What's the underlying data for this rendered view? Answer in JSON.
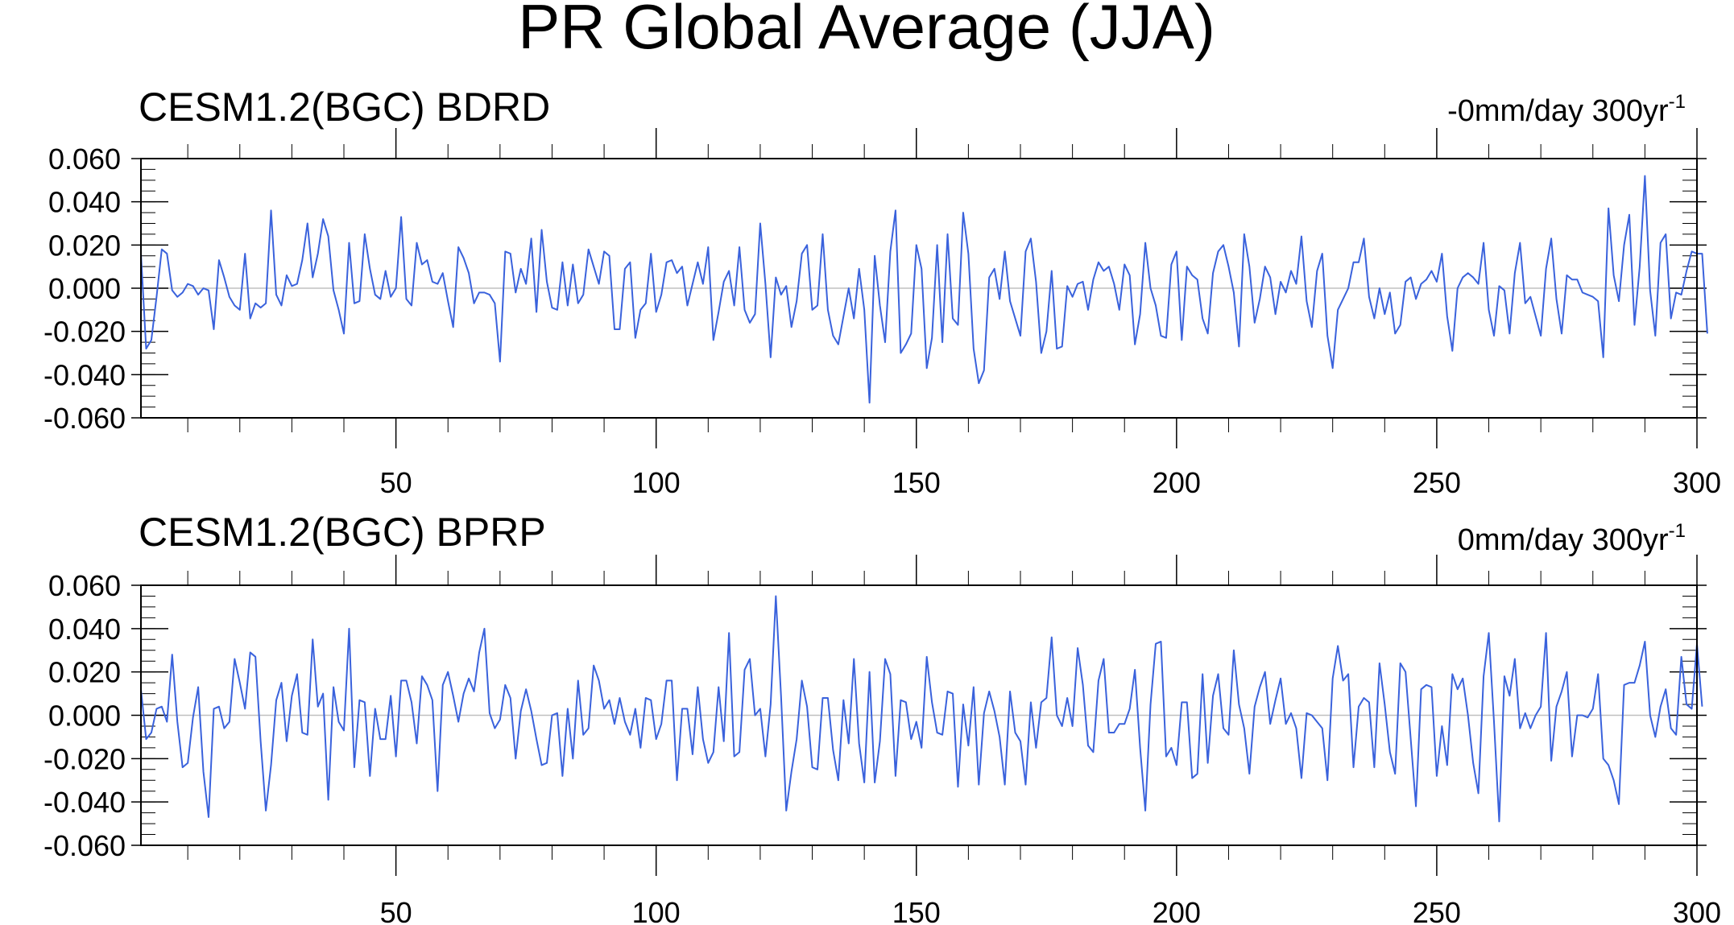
{
  "figure": {
    "title": "PR Global Average (JJA)"
  },
  "colors": {
    "series": "#3a62dc",
    "zero_line": "#c0c0c0",
    "axis": "#000000"
  },
  "chart_data": [
    {
      "type": "line",
      "title": "CESM1.2(BGC) BDRD",
      "trend_label": "-0mm/day 300yr",
      "trend_superscript": "-1",
      "xlim": [
        1,
        300
      ],
      "ylim": [
        -0.06,
        0.06
      ],
      "xticks": [
        "50",
        "100",
        "150",
        "200",
        "250",
        "300"
      ],
      "yticks": [
        "0.060",
        "0.040",
        "0.020",
        "0.000",
        "-0.020",
        "-0.040",
        "-0.060"
      ],
      "grid": false,
      "series": [
        {
          "x_start": 1,
          "values": [
            0.016,
            -0.028,
            -0.024,
            -0.004,
            0.018,
            0.016,
            -0.001,
            -0.004,
            -0.002,
            0.002,
            0.001,
            -0.003,
            0.0,
            -0.001,
            -0.019,
            0.013,
            0.005,
            -0.004,
            -0.008,
            -0.01,
            0.016,
            -0.014,
            -0.007,
            -0.009,
            -0.007,
            0.036,
            -0.003,
            -0.008,
            0.006,
            0.001,
            0.002,
            0.013,
            0.03,
            0.005,
            0.016,
            0.032,
            0.024,
            -0.001,
            -0.01,
            -0.021,
            0.021,
            -0.007,
            -0.006,
            0.025,
            0.009,
            -0.003,
            -0.005,
            0.008,
            -0.004,
            0.0,
            0.033,
            -0.005,
            -0.008,
            0.021,
            0.011,
            0.013,
            0.003,
            0.002,
            0.007,
            -0.006,
            -0.018,
            0.019,
            0.014,
            0.007,
            -0.007,
            -0.002,
            -0.002,
            -0.003,
            -0.007,
            -0.034,
            0.017,
            0.016,
            -0.002,
            0.009,
            0.002,
            0.023,
            -0.011,
            0.027,
            0.003,
            -0.009,
            -0.01,
            0.012,
            -0.008,
            0.011,
            -0.007,
            -0.003,
            0.018,
            0.01,
            0.002,
            0.017,
            0.015,
            -0.019,
            -0.019,
            0.009,
            0.012,
            -0.023,
            -0.01,
            -0.007,
            0.016,
            -0.011,
            -0.003,
            0.012,
            0.013,
            0.007,
            0.01,
            -0.008,
            0.002,
            0.012,
            0.002,
            0.019,
            -0.024,
            -0.011,
            0.003,
            0.008,
            -0.008,
            0.019,
            -0.01,
            -0.016,
            -0.012,
            0.03,
            0.002,
            -0.032,
            0.005,
            -0.003,
            0.001,
            -0.018,
            -0.006,
            0.016,
            0.02,
            -0.01,
            -0.008,
            0.025,
            -0.01,
            -0.022,
            -0.026,
            -0.013,
            0.0,
            -0.014,
            0.009,
            -0.01,
            -0.053,
            0.015,
            -0.008,
            -0.025,
            0.017,
            0.036,
            -0.03,
            -0.026,
            -0.021,
            0.02,
            0.009,
            -0.037,
            -0.023,
            0.02,
            -0.025,
            0.025,
            -0.014,
            -0.017,
            0.035,
            0.016,
            -0.028,
            -0.044,
            -0.038,
            0.005,
            0.009,
            -0.005,
            0.017,
            -0.006,
            -0.014,
            -0.022,
            0.017,
            0.023,
            0.003,
            -0.03,
            -0.02,
            0.008,
            -0.028,
            -0.027,
            0.001,
            -0.004,
            0.002,
            0.003,
            -0.01,
            0.004,
            0.012,
            0.008,
            0.01,
            0.002,
            -0.01,
            0.011,
            0.006,
            -0.026,
            -0.012,
            0.021,
            0.0,
            -0.008,
            -0.022,
            -0.023,
            0.011,
            0.017,
            -0.024,
            0.01,
            0.006,
            0.004,
            -0.014,
            -0.021,
            0.007,
            0.017,
            0.02,
            0.01,
            -0.002,
            -0.027,
            0.025,
            0.01,
            -0.016,
            -0.005,
            0.01,
            0.005,
            -0.012,
            0.003,
            -0.002,
            0.008,
            0.002,
            0.024,
            -0.006,
            -0.018,
            0.008,
            0.016,
            -0.022,
            -0.037,
            -0.01,
            -0.005,
            0.0,
            0.012,
            0.012,
            0.023,
            -0.004,
            -0.014,
            0.0,
            -0.012,
            -0.002,
            -0.021,
            -0.017,
            0.003,
            0.005,
            -0.005,
            0.002,
            0.004,
            0.008,
            0.003,
            0.016,
            -0.013,
            -0.029,
            0.0,
            0.005,
            0.007,
            0.005,
            0.002,
            0.021,
            -0.01,
            -0.022,
            0.001,
            -0.001,
            -0.021,
            0.007,
            0.021,
            -0.007,
            -0.004,
            -0.013,
            -0.022,
            0.009,
            0.023,
            -0.005,
            -0.021,
            0.006,
            0.004,
            0.004,
            -0.002,
            -0.003,
            -0.004,
            -0.006,
            -0.032,
            0.037,
            0.006,
            -0.006,
            0.02,
            0.034,
            -0.017,
            0.01,
            0.052,
            -0.001,
            -0.022,
            0.021,
            0.025,
            -0.014,
            -0.002,
            -0.003,
            0.008,
            0.017,
            0.016,
            0.016,
            -0.021
          ]
        }
      ]
    },
    {
      "type": "line",
      "title": "CESM1.2(BGC) BPRP",
      "trend_label": "0mm/day 300yr",
      "trend_superscript": "-1",
      "xlim": [
        1,
        300
      ],
      "ylim": [
        -0.06,
        0.06
      ],
      "xticks": [
        "50",
        "100",
        "150",
        "200",
        "250",
        "300"
      ],
      "yticks": [
        "0.060",
        "0.040",
        "0.020",
        "0.000",
        "-0.020",
        "-0.040",
        "-0.060"
      ],
      "grid": false,
      "series": [
        {
          "x_start": 1,
          "values": [
            0.012,
            -0.011,
            -0.008,
            0.003,
            0.004,
            -0.003,
            0.028,
            -0.003,
            -0.024,
            -0.022,
            -0.001,
            0.013,
            -0.026,
            -0.047,
            0.003,
            0.004,
            -0.006,
            -0.003,
            0.026,
            0.015,
            0.003,
            0.029,
            0.027,
            -0.012,
            -0.044,
            -0.023,
            0.007,
            0.015,
            -0.012,
            0.009,
            0.019,
            -0.008,
            -0.009,
            0.035,
            0.004,
            0.01,
            -0.039,
            0.013,
            -0.003,
            -0.007,
            0.04,
            -0.024,
            0.007,
            0.006,
            -0.028,
            0.003,
            -0.011,
            -0.011,
            0.009,
            -0.019,
            0.016,
            0.016,
            0.006,
            -0.013,
            0.018,
            0.014,
            0.007,
            -0.035,
            0.014,
            0.02,
            0.009,
            -0.003,
            0.01,
            0.017,
            0.011,
            0.029,
            0.04,
            0.001,
            -0.006,
            -0.002,
            0.014,
            0.008,
            -0.02,
            0.002,
            0.012,
            0.002,
            -0.011,
            -0.023,
            -0.022,
            0.0,
            0.001,
            -0.028,
            0.003,
            -0.02,
            0.016,
            -0.009,
            -0.006,
            0.023,
            0.016,
            0.003,
            0.007,
            -0.004,
            0.008,
            -0.003,
            -0.009,
            0.003,
            -0.015,
            0.008,
            0.007,
            -0.011,
            -0.004,
            0.016,
            0.016,
            -0.03,
            0.003,
            0.003,
            -0.018,
            0.013,
            -0.011,
            -0.022,
            -0.017,
            0.013,
            -0.012,
            0.038,
            -0.019,
            -0.017,
            0.021,
            0.026,
            0.0,
            0.003,
            -0.019,
            0.005,
            0.055,
            0.009,
            -0.044,
            -0.026,
            -0.011,
            0.016,
            0.004,
            -0.024,
            -0.025,
            0.008,
            0.008,
            -0.016,
            -0.03,
            0.007,
            -0.013,
            0.026,
            -0.013,
            -0.031,
            0.02,
            -0.031,
            -0.012,
            0.026,
            0.019,
            -0.028,
            0.007,
            0.006,
            -0.011,
            -0.003,
            -0.015,
            0.027,
            0.006,
            -0.008,
            -0.009,
            0.011,
            0.01,
            -0.033,
            0.005,
            -0.014,
            0.013,
            -0.032,
            0.001,
            0.011,
            0.002,
            -0.01,
            -0.032,
            0.011,
            -0.008,
            -0.012,
            -0.032,
            0.006,
            -0.015,
            0.006,
            0.008,
            0.036,
            0.0,
            -0.005,
            0.008,
            -0.005,
            0.031,
            0.014,
            -0.014,
            -0.017,
            0.016,
            0.026,
            -0.008,
            -0.008,
            -0.004,
            -0.004,
            0.003,
            0.021,
            -0.015,
            -0.044,
            0.005,
            0.033,
            0.034,
            -0.019,
            -0.015,
            -0.023,
            0.006,
            0.006,
            -0.029,
            -0.027,
            0.019,
            -0.022,
            0.009,
            0.019,
            -0.006,
            -0.009,
            0.03,
            0.005,
            -0.006,
            -0.027,
            0.004,
            0.013,
            0.02,
            -0.004,
            0.007,
            0.017,
            -0.004,
            0.001,
            -0.006,
            -0.029,
            0.001,
            0.0,
            -0.003,
            -0.006,
            -0.03,
            0.017,
            0.032,
            0.016,
            0.019,
            -0.024,
            0.004,
            0.008,
            0.006,
            -0.024,
            0.024,
            0.005,
            -0.017,
            -0.027,
            0.024,
            0.02,
            -0.011,
            -0.042,
            0.012,
            0.014,
            0.013,
            -0.028,
            -0.005,
            -0.023,
            0.019,
            0.012,
            0.017,
            0.0,
            -0.022,
            -0.036,
            0.018,
            0.038,
            -0.003,
            -0.049,
            0.018,
            0.009,
            0.026,
            -0.006,
            0.001,
            -0.006,
            0.0,
            0.004,
            0.038,
            -0.021,
            0.004,
            0.011,
            0.02,
            -0.019,
            0.0,
            0.0,
            -0.001,
            0.003,
            0.019,
            -0.02,
            -0.023,
            -0.03,
            -0.041,
            0.014,
            0.015,
            0.015,
            0.023,
            0.034,
            0.0,
            -0.01,
            0.004,
            0.012,
            -0.006,
            -0.009,
            0.027,
            0.005,
            0.003,
            0.033,
            0.004
          ]
        }
      ]
    }
  ]
}
